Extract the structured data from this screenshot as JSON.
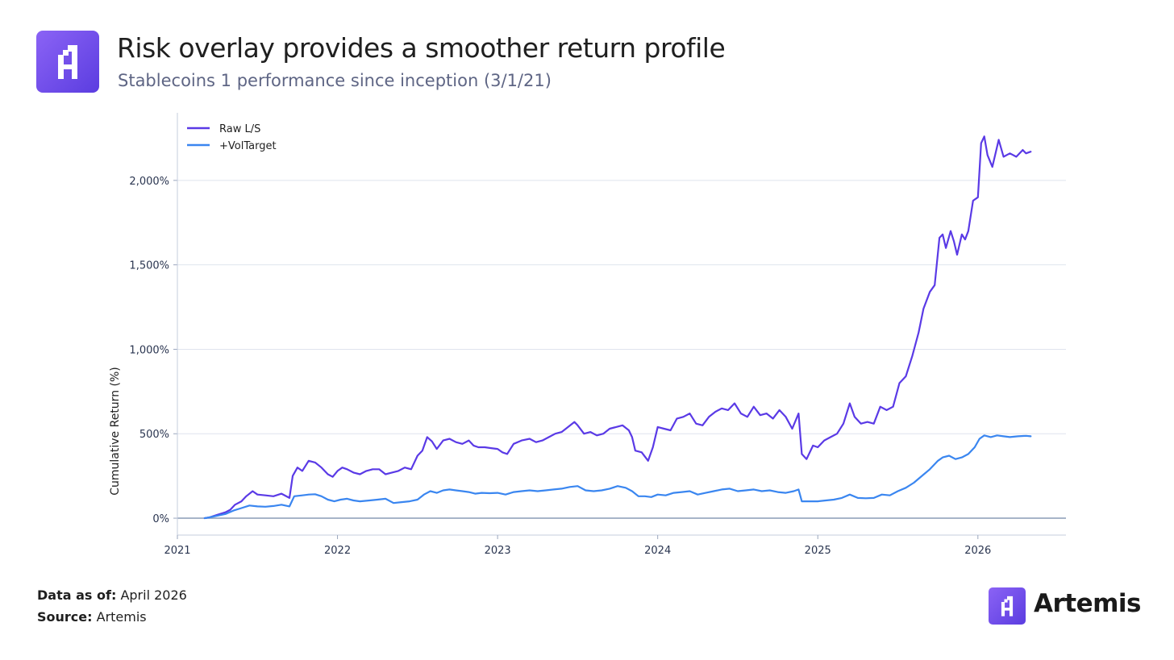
{
  "header": {
    "title": "Risk overlay provides a smoother return profile",
    "subtitle": "Stablecoins 1 performance since inception (3/1/21)"
  },
  "footer": {
    "data_as_of_label": "Data as of:",
    "data_as_of_value": "April 2026",
    "source_label": "Source:",
    "source_value": "Artemis"
  },
  "brand": {
    "name": "Artemis",
    "logo_icon": "artemis-logo-icon",
    "color": "#6b4cf0"
  },
  "chart_data": {
    "type": "line",
    "ylabel": "Cumulative Return (%)",
    "xlabel": "",
    "xlim": [
      2021.0,
      2026.55
    ],
    "ylim": [
      -100,
      2400
    ],
    "x_ticks": [
      2021,
      2022,
      2023,
      2024,
      2025,
      2026
    ],
    "x_tick_labels": [
      "2021",
      "2022",
      "2023",
      "2024",
      "2025",
      "2026"
    ],
    "y_ticks": [
      0,
      500,
      1000,
      1500,
      2000
    ],
    "y_tick_labels": [
      "0%",
      "500%",
      "1,000%",
      "1,500%",
      "2,000%"
    ],
    "grid": "horizontal",
    "legend_position": "top-left",
    "series": [
      {
        "name": "Raw L/S",
        "color": "#5a3ae6",
        "points": [
          [
            2021.17,
            0
          ],
          [
            2021.2,
            5
          ],
          [
            2021.25,
            20
          ],
          [
            2021.3,
            35
          ],
          [
            2021.33,
            50
          ],
          [
            2021.36,
            80
          ],
          [
            2021.4,
            100
          ],
          [
            2021.43,
            130
          ],
          [
            2021.47,
            160
          ],
          [
            2021.5,
            140
          ],
          [
            2021.55,
            135
          ],
          [
            2021.6,
            130
          ],
          [
            2021.65,
            145
          ],
          [
            2021.7,
            120
          ],
          [
            2021.72,
            250
          ],
          [
            2021.75,
            300
          ],
          [
            2021.78,
            280
          ],
          [
            2021.82,
            340
          ],
          [
            2021.86,
            330
          ],
          [
            2021.9,
            300
          ],
          [
            2021.94,
            260
          ],
          [
            2021.97,
            245
          ],
          [
            2022.0,
            280
          ],
          [
            2022.03,
            300
          ],
          [
            2022.06,
            290
          ],
          [
            2022.1,
            270
          ],
          [
            2022.14,
            260
          ],
          [
            2022.18,
            280
          ],
          [
            2022.22,
            290
          ],
          [
            2022.26,
            290
          ],
          [
            2022.3,
            260
          ],
          [
            2022.34,
            270
          ],
          [
            2022.38,
            280
          ],
          [
            2022.42,
            300
          ],
          [
            2022.46,
            290
          ],
          [
            2022.5,
            370
          ],
          [
            2022.53,
            400
          ],
          [
            2022.56,
            480
          ],
          [
            2022.59,
            455
          ],
          [
            2022.62,
            410
          ],
          [
            2022.66,
            460
          ],
          [
            2022.7,
            470
          ],
          [
            2022.74,
            450
          ],
          [
            2022.78,
            440
          ],
          [
            2022.82,
            460
          ],
          [
            2022.85,
            430
          ],
          [
            2022.88,
            420
          ],
          [
            2022.92,
            420
          ],
          [
            2022.96,
            415
          ],
          [
            2023.0,
            410
          ],
          [
            2023.03,
            390
          ],
          [
            2023.06,
            380
          ],
          [
            2023.1,
            440
          ],
          [
            2023.15,
            460
          ],
          [
            2023.2,
            470
          ],
          [
            2023.24,
            450
          ],
          [
            2023.28,
            460
          ],
          [
            2023.32,
            480
          ],
          [
            2023.36,
            500
          ],
          [
            2023.4,
            510
          ],
          [
            2023.44,
            540
          ],
          [
            2023.48,
            570
          ],
          [
            2023.5,
            550
          ],
          [
            2023.54,
            500
          ],
          [
            2023.58,
            510
          ],
          [
            2023.62,
            490
          ],
          [
            2023.66,
            500
          ],
          [
            2023.7,
            530
          ],
          [
            2023.74,
            540
          ],
          [
            2023.78,
            550
          ],
          [
            2023.82,
            520
          ],
          [
            2023.84,
            480
          ],
          [
            2023.86,
            400
          ],
          [
            2023.9,
            390
          ],
          [
            2023.94,
            340
          ],
          [
            2023.97,
            420
          ],
          [
            2024.0,
            540
          ],
          [
            2024.04,
            530
          ],
          [
            2024.08,
            520
          ],
          [
            2024.12,
            590
          ],
          [
            2024.16,
            600
          ],
          [
            2024.2,
            620
          ],
          [
            2024.24,
            560
          ],
          [
            2024.28,
            550
          ],
          [
            2024.32,
            600
          ],
          [
            2024.36,
            630
          ],
          [
            2024.4,
            650
          ],
          [
            2024.44,
            640
          ],
          [
            2024.48,
            680
          ],
          [
            2024.52,
            620
          ],
          [
            2024.56,
            600
          ],
          [
            2024.6,
            660
          ],
          [
            2024.64,
            610
          ],
          [
            2024.68,
            620
          ],
          [
            2024.72,
            590
          ],
          [
            2024.76,
            640
          ],
          [
            2024.8,
            600
          ],
          [
            2024.84,
            530
          ],
          [
            2024.88,
            620
          ],
          [
            2024.9,
            380
          ],
          [
            2024.93,
            350
          ],
          [
            2024.97,
            430
          ],
          [
            2025.0,
            420
          ],
          [
            2025.04,
            460
          ],
          [
            2025.08,
            480
          ],
          [
            2025.12,
            500
          ],
          [
            2025.16,
            560
          ],
          [
            2025.2,
            680
          ],
          [
            2025.23,
            600
          ],
          [
            2025.27,
            560
          ],
          [
            2025.31,
            570
          ],
          [
            2025.35,
            560
          ],
          [
            2025.39,
            660
          ],
          [
            2025.43,
            640
          ],
          [
            2025.47,
            660
          ],
          [
            2025.51,
            800
          ],
          [
            2025.55,
            840
          ],
          [
            2025.59,
            960
          ],
          [
            2025.63,
            1100
          ],
          [
            2025.66,
            1240
          ],
          [
            2025.7,
            1340
          ],
          [
            2025.73,
            1380
          ],
          [
            2025.76,
            1660
          ],
          [
            2025.78,
            1680
          ],
          [
            2025.8,
            1600
          ],
          [
            2025.83,
            1700
          ],
          [
            2025.85,
            1640
          ],
          [
            2025.87,
            1560
          ],
          [
            2025.9,
            1680
          ],
          [
            2025.92,
            1650
          ],
          [
            2025.94,
            1700
          ],
          [
            2025.97,
            1880
          ],
          [
            2026.0,
            1900
          ],
          [
            2026.02,
            2220
          ],
          [
            2026.04,
            2260
          ],
          [
            2026.06,
            2150
          ],
          [
            2026.09,
            2080
          ],
          [
            2026.13,
            2240
          ],
          [
            2026.16,
            2140
          ],
          [
            2026.2,
            2160
          ],
          [
            2026.24,
            2140
          ],
          [
            2026.28,
            2180
          ],
          [
            2026.3,
            2160
          ],
          [
            2026.33,
            2170
          ]
        ]
      },
      {
        "name": "+VolTarget",
        "color": "#3a86f0",
        "points": [
          [
            2021.17,
            0
          ],
          [
            2021.2,
            5
          ],
          [
            2021.25,
            15
          ],
          [
            2021.3,
            25
          ],
          [
            2021.35,
            45
          ],
          [
            2021.4,
            60
          ],
          [
            2021.45,
            75
          ],
          [
            2021.5,
            70
          ],
          [
            2021.55,
            68
          ],
          [
            2021.6,
            72
          ],
          [
            2021.65,
            80
          ],
          [
            2021.7,
            70
          ],
          [
            2021.73,
            130
          ],
          [
            2021.78,
            135
          ],
          [
            2021.82,
            140
          ],
          [
            2021.86,
            142
          ],
          [
            2021.9,
            130
          ],
          [
            2021.94,
            110
          ],
          [
            2021.98,
            100
          ],
          [
            2022.02,
            110
          ],
          [
            2022.06,
            115
          ],
          [
            2022.1,
            105
          ],
          [
            2022.14,
            100
          ],
          [
            2022.2,
            105
          ],
          [
            2022.25,
            110
          ],
          [
            2022.3,
            115
          ],
          [
            2022.35,
            90
          ],
          [
            2022.4,
            95
          ],
          [
            2022.45,
            100
          ],
          [
            2022.5,
            110
          ],
          [
            2022.54,
            140
          ],
          [
            2022.58,
            160
          ],
          [
            2022.62,
            150
          ],
          [
            2022.66,
            165
          ],
          [
            2022.7,
            170
          ],
          [
            2022.74,
            165
          ],
          [
            2022.78,
            160
          ],
          [
            2022.82,
            155
          ],
          [
            2022.86,
            145
          ],
          [
            2022.9,
            150
          ],
          [
            2022.95,
            148
          ],
          [
            2023.0,
            150
          ],
          [
            2023.05,
            140
          ],
          [
            2023.1,
            155
          ],
          [
            2023.15,
            160
          ],
          [
            2023.2,
            165
          ],
          [
            2023.25,
            160
          ],
          [
            2023.3,
            165
          ],
          [
            2023.35,
            170
          ],
          [
            2023.4,
            175
          ],
          [
            2023.45,
            185
          ],
          [
            2023.5,
            190
          ],
          [
            2023.55,
            165
          ],
          [
            2023.6,
            160
          ],
          [
            2023.65,
            165
          ],
          [
            2023.7,
            175
          ],
          [
            2023.75,
            190
          ],
          [
            2023.8,
            180
          ],
          [
            2023.84,
            160
          ],
          [
            2023.88,
            130
          ],
          [
            2023.92,
            130
          ],
          [
            2023.96,
            125
          ],
          [
            2024.0,
            140
          ],
          [
            2024.05,
            135
          ],
          [
            2024.1,
            150
          ],
          [
            2024.15,
            155
          ],
          [
            2024.2,
            160
          ],
          [
            2024.25,
            140
          ],
          [
            2024.3,
            150
          ],
          [
            2024.35,
            160
          ],
          [
            2024.4,
            170
          ],
          [
            2024.45,
            175
          ],
          [
            2024.5,
            160
          ],
          [
            2024.55,
            165
          ],
          [
            2024.6,
            170
          ],
          [
            2024.65,
            160
          ],
          [
            2024.7,
            165
          ],
          [
            2024.75,
            155
          ],
          [
            2024.8,
            150
          ],
          [
            2024.85,
            160
          ],
          [
            2024.88,
            170
          ],
          [
            2024.9,
            100
          ],
          [
            2024.95,
            100
          ],
          [
            2025.0,
            100
          ],
          [
            2025.05,
            105
          ],
          [
            2025.1,
            110
          ],
          [
            2025.15,
            120
          ],
          [
            2025.2,
            140
          ],
          [
            2025.25,
            120
          ],
          [
            2025.3,
            118
          ],
          [
            2025.35,
            120
          ],
          [
            2025.4,
            140
          ],
          [
            2025.45,
            135
          ],
          [
            2025.5,
            160
          ],
          [
            2025.55,
            180
          ],
          [
            2025.6,
            210
          ],
          [
            2025.65,
            250
          ],
          [
            2025.7,
            290
          ],
          [
            2025.75,
            340
          ],
          [
            2025.78,
            360
          ],
          [
            2025.82,
            370
          ],
          [
            2025.86,
            350
          ],
          [
            2025.9,
            360
          ],
          [
            2025.94,
            380
          ],
          [
            2025.98,
            420
          ],
          [
            2026.01,
            470
          ],
          [
            2026.04,
            490
          ],
          [
            2026.08,
            480
          ],
          [
            2026.12,
            490
          ],
          [
            2026.16,
            485
          ],
          [
            2026.2,
            480
          ],
          [
            2026.25,
            485
          ],
          [
            2026.3,
            488
          ],
          [
            2026.33,
            485
          ]
        ]
      }
    ]
  }
}
